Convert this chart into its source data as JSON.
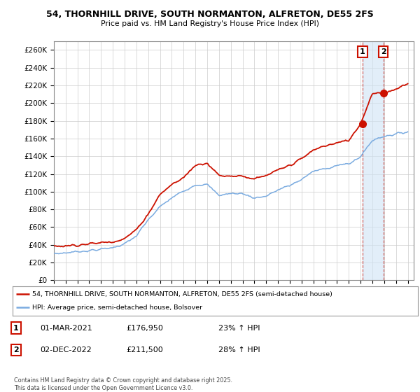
{
  "title_line1": "54, THORNHILL DRIVE, SOUTH NORMANTON, ALFRETON, DE55 2FS",
  "title_line2": "Price paid vs. HM Land Registry's House Price Index (HPI)",
  "ylim": [
    0,
    270000
  ],
  "yticks": [
    0,
    20000,
    40000,
    60000,
    80000,
    100000,
    120000,
    140000,
    160000,
    180000,
    200000,
    220000,
    240000,
    260000
  ],
  "ytick_labels": [
    "£0",
    "£20K",
    "£40K",
    "£60K",
    "£80K",
    "£100K",
    "£120K",
    "£140K",
    "£160K",
    "£180K",
    "£200K",
    "£220K",
    "£240K",
    "£260K"
  ],
  "xtick_years": [
    1995,
    1996,
    1997,
    1998,
    1999,
    2000,
    2001,
    2002,
    2003,
    2004,
    2005,
    2006,
    2007,
    2008,
    2009,
    2010,
    2011,
    2012,
    2013,
    2014,
    2015,
    2016,
    2017,
    2018,
    2019,
    2020,
    2021,
    2022,
    2023,
    2024,
    2025
  ],
  "hpi_color": "#7aabe0",
  "hpi_fill_color": "#d0e4f5",
  "price_color": "#cc1100",
  "annotation_box_color": "#cc1100",
  "sale1_x": 2021.17,
  "sale1_y": 176950,
  "sale2_x": 2022.92,
  "sale2_y": 211500,
  "sale1_label": "1",
  "sale2_label": "2",
  "legend_line1": "54, THORNHILL DRIVE, SOUTH NORMANTON, ALFRETON, DE55 2FS (semi-detached house)",
  "legend_line2": "HPI: Average price, semi-detached house, Bolsover",
  "annotation1_date": "01-MAR-2021",
  "annotation1_price": "£176,950",
  "annotation1_hpi": "23% ↑ HPI",
  "annotation2_date": "02-DEC-2022",
  "annotation2_price": "£211,500",
  "annotation2_hpi": "28% ↑ HPI",
  "copyright_text": "Contains HM Land Registry data © Crown copyright and database right 2025.\nThis data is licensed under the Open Government Licence v3.0.",
  "background_color": "#ffffff",
  "grid_color": "#cccccc"
}
